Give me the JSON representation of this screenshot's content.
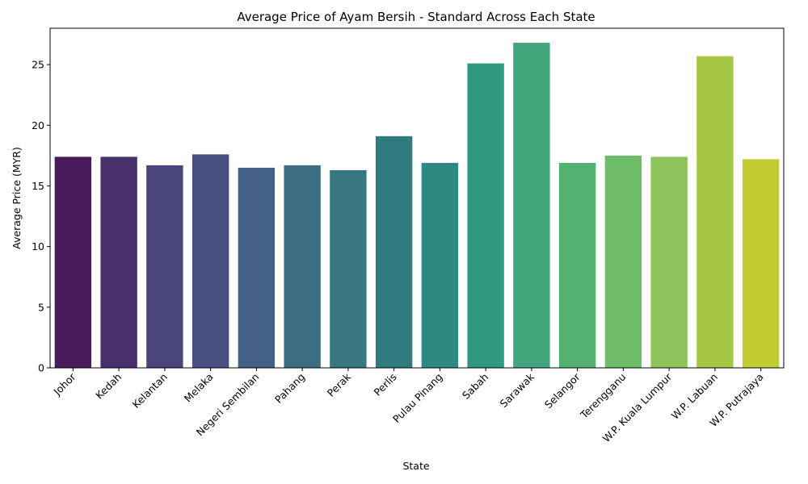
{
  "chart_data": {
    "type": "bar",
    "title": "Average Price of Ayam Bersih - Standard Across Each State",
    "xlabel": "State",
    "ylabel": "Average Price (MYR)",
    "ylim": [
      0,
      28
    ],
    "yticks": [
      0,
      5,
      10,
      15,
      20,
      25
    ],
    "grid": false,
    "legend": "none",
    "categories": [
      "Johor",
      "Kedah",
      "Kelantan",
      "Melaka",
      "Negeri Sembilan",
      "Pahang",
      "Perak",
      "Perlis",
      "Pulau Pinang",
      "Sabah",
      "Sarawak",
      "Selangor",
      "Terengganu",
      "W.P. Kuala Lumpur",
      "W.P. Labuan",
      "W.P. Putrajaya"
    ],
    "values": [
      17.4,
      17.4,
      16.7,
      17.6,
      16.5,
      16.7,
      16.3,
      19.1,
      16.9,
      25.1,
      26.8,
      16.9,
      17.5,
      17.4,
      25.7,
      17.2
    ],
    "colors": [
      "#481c5a",
      "#47306c",
      "#4a4679",
      "#474f80",
      "#436085",
      "#3b6d82",
      "#387680",
      "#307b7f",
      "#2e8a80",
      "#319980",
      "#42a57b",
      "#52b171",
      "#6fbc69",
      "#8cc35a",
      "#a6c744",
      "#c2cb31"
    ]
  }
}
